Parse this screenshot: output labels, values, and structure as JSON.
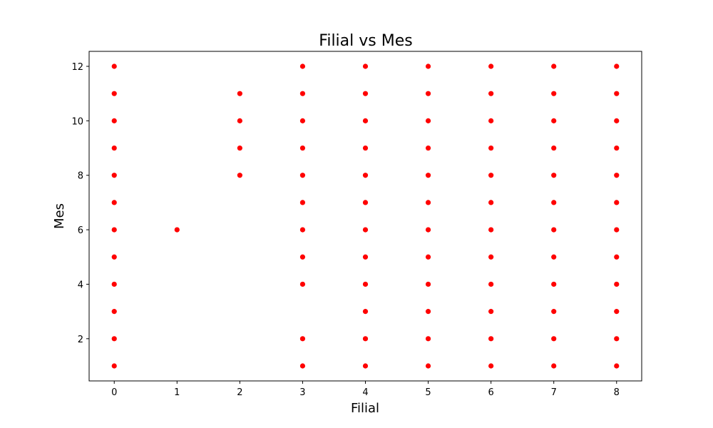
{
  "chart_data": {
    "type": "scatter",
    "title": "Filial vs Mes",
    "xlabel": "Filial",
    "ylabel": "Mes",
    "xlim": [
      -0.4,
      8.4
    ],
    "ylim": [
      0.45,
      12.55
    ],
    "xticks": [
      0,
      1,
      2,
      3,
      4,
      5,
      6,
      7,
      8
    ],
    "yticks": [
      2,
      4,
      6,
      8,
      10,
      12
    ],
    "grid": false,
    "legend": "none",
    "marker_color": "#ff0000",
    "points": [
      {
        "x": 0,
        "y": 1
      },
      {
        "x": 0,
        "y": 2
      },
      {
        "x": 0,
        "y": 3
      },
      {
        "x": 0,
        "y": 4
      },
      {
        "x": 0,
        "y": 5
      },
      {
        "x": 0,
        "y": 6
      },
      {
        "x": 0,
        "y": 7
      },
      {
        "x": 0,
        "y": 8
      },
      {
        "x": 0,
        "y": 9
      },
      {
        "x": 0,
        "y": 10
      },
      {
        "x": 0,
        "y": 11
      },
      {
        "x": 0,
        "y": 12
      },
      {
        "x": 1,
        "y": 6
      },
      {
        "x": 2,
        "y": 8
      },
      {
        "x": 2,
        "y": 9
      },
      {
        "x": 2,
        "y": 10
      },
      {
        "x": 2,
        "y": 11
      },
      {
        "x": 3,
        "y": 1
      },
      {
        "x": 3,
        "y": 2
      },
      {
        "x": 3,
        "y": 4
      },
      {
        "x": 3,
        "y": 5
      },
      {
        "x": 3,
        "y": 6
      },
      {
        "x": 3,
        "y": 7
      },
      {
        "x": 3,
        "y": 8
      },
      {
        "x": 3,
        "y": 9
      },
      {
        "x": 3,
        "y": 10
      },
      {
        "x": 3,
        "y": 11
      },
      {
        "x": 3,
        "y": 12
      },
      {
        "x": 4,
        "y": 1
      },
      {
        "x": 4,
        "y": 2
      },
      {
        "x": 4,
        "y": 3
      },
      {
        "x": 4,
        "y": 4
      },
      {
        "x": 4,
        "y": 5
      },
      {
        "x": 4,
        "y": 6
      },
      {
        "x": 4,
        "y": 7
      },
      {
        "x": 4,
        "y": 8
      },
      {
        "x": 4,
        "y": 9
      },
      {
        "x": 4,
        "y": 10
      },
      {
        "x": 4,
        "y": 11
      },
      {
        "x": 4,
        "y": 12
      },
      {
        "x": 5,
        "y": 1
      },
      {
        "x": 5,
        "y": 2
      },
      {
        "x": 5,
        "y": 3
      },
      {
        "x": 5,
        "y": 4
      },
      {
        "x": 5,
        "y": 5
      },
      {
        "x": 5,
        "y": 6
      },
      {
        "x": 5,
        "y": 7
      },
      {
        "x": 5,
        "y": 8
      },
      {
        "x": 5,
        "y": 9
      },
      {
        "x": 5,
        "y": 10
      },
      {
        "x": 5,
        "y": 11
      },
      {
        "x": 5,
        "y": 12
      },
      {
        "x": 6,
        "y": 1
      },
      {
        "x": 6,
        "y": 2
      },
      {
        "x": 6,
        "y": 3
      },
      {
        "x": 6,
        "y": 4
      },
      {
        "x": 6,
        "y": 5
      },
      {
        "x": 6,
        "y": 6
      },
      {
        "x": 6,
        "y": 7
      },
      {
        "x": 6,
        "y": 8
      },
      {
        "x": 6,
        "y": 9
      },
      {
        "x": 6,
        "y": 10
      },
      {
        "x": 6,
        "y": 11
      },
      {
        "x": 6,
        "y": 12
      },
      {
        "x": 7,
        "y": 1
      },
      {
        "x": 7,
        "y": 2
      },
      {
        "x": 7,
        "y": 3
      },
      {
        "x": 7,
        "y": 4
      },
      {
        "x": 7,
        "y": 5
      },
      {
        "x": 7,
        "y": 6
      },
      {
        "x": 7,
        "y": 7
      },
      {
        "x": 7,
        "y": 8
      },
      {
        "x": 7,
        "y": 9
      },
      {
        "x": 7,
        "y": 10
      },
      {
        "x": 7,
        "y": 11
      },
      {
        "x": 7,
        "y": 12
      },
      {
        "x": 8,
        "y": 1
      },
      {
        "x": 8,
        "y": 2
      },
      {
        "x": 8,
        "y": 3
      },
      {
        "x": 8,
        "y": 4
      },
      {
        "x": 8,
        "y": 5
      },
      {
        "x": 8,
        "y": 6
      },
      {
        "x": 8,
        "y": 7
      },
      {
        "x": 8,
        "y": 8
      },
      {
        "x": 8,
        "y": 9
      },
      {
        "x": 8,
        "y": 10
      },
      {
        "x": 8,
        "y": 11
      },
      {
        "x": 8,
        "y": 12
      }
    ]
  }
}
